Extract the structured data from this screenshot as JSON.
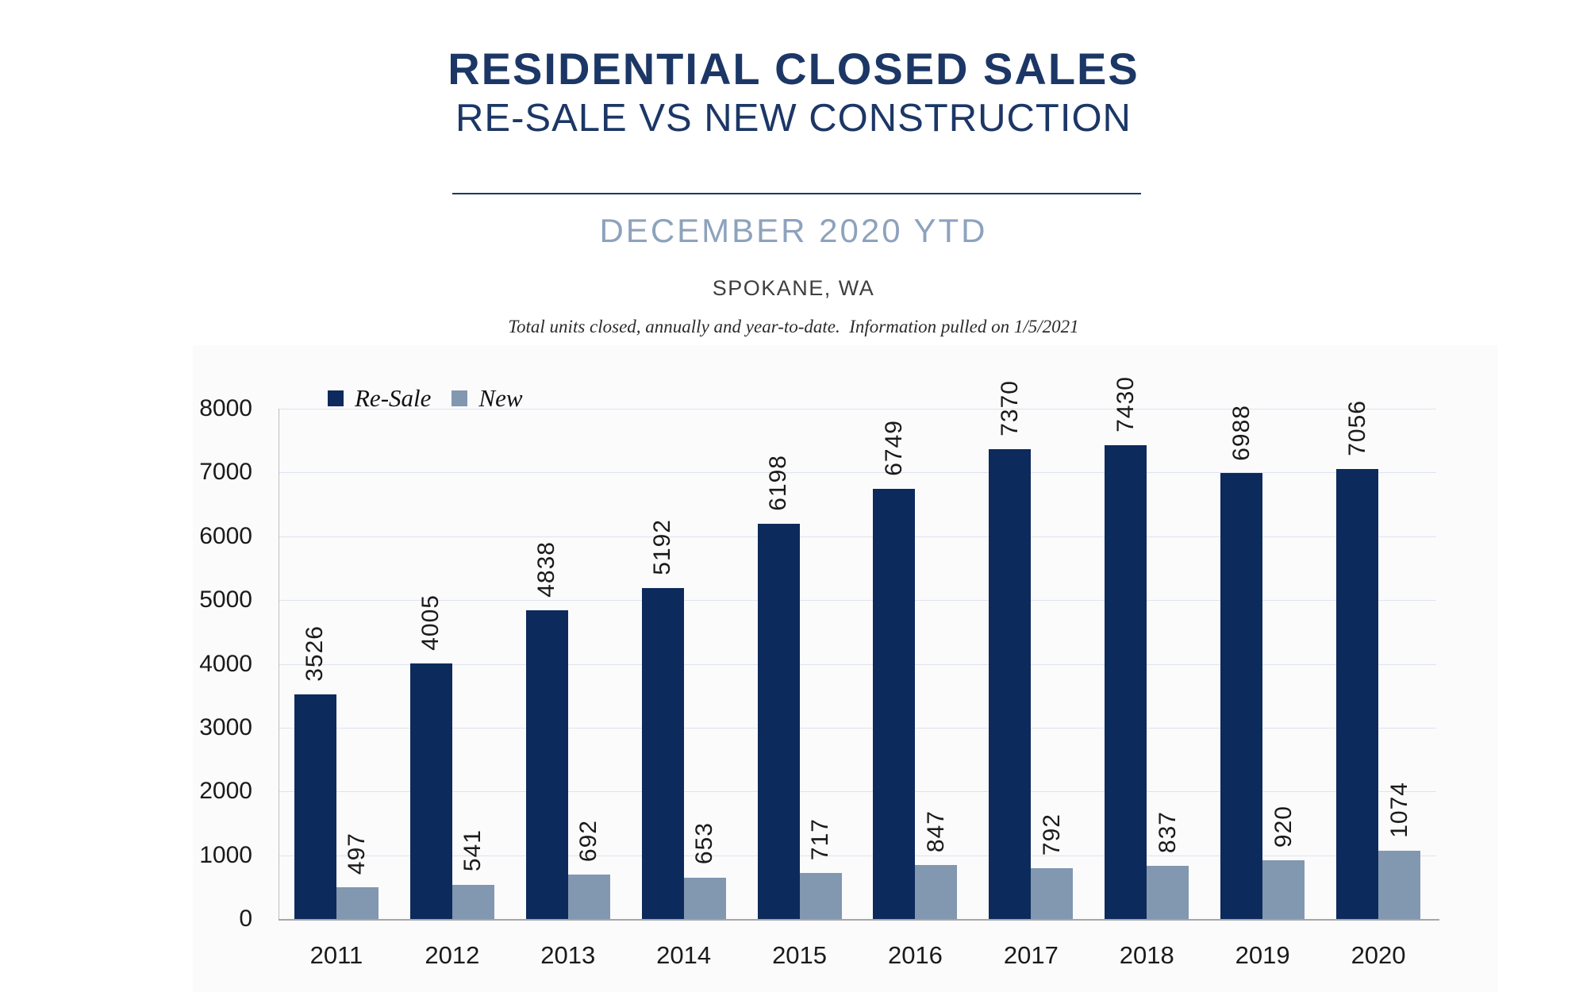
{
  "header": {
    "title": "RESIDENTIAL CLOSED SALES",
    "subtitle": "RE-SALE VS NEW CONSTRUCTION",
    "period": "DECEMBER 2020 YTD",
    "location": "SPOKANE, WA",
    "note": "Total units closed, annually and year-to-date.  Information pulled on 1/5/2021"
  },
  "colors": {
    "title_navy": "#1c3766",
    "period_blue": "#8da2bc",
    "resale_bar": "#0d2a5c",
    "new_bar": "#8297b0",
    "gridline": "#dde3f2",
    "axis_line": "#a6a6a6",
    "spine_line": "#bcbcbc",
    "label_text": "#1a1a1a"
  },
  "chart_data": {
    "type": "bar",
    "title": "Residential Closed Sales - Re-Sale vs New Construction",
    "subtitle": "December 2020 YTD, Spokane, WA",
    "categories": [
      "2011",
      "2012",
      "2013",
      "2014",
      "2015",
      "2016",
      "2017",
      "2018",
      "2019",
      "2020"
    ],
    "series": [
      {
        "name": "Re-Sale",
        "color": "#0d2a5c",
        "values": [
          3526,
          4005,
          4838,
          5192,
          6198,
          6749,
          7370,
          7430,
          6988,
          7056
        ]
      },
      {
        "name": "New",
        "color": "#8297b0",
        "values": [
          497,
          541,
          692,
          653,
          717,
          847,
          792,
          837,
          920,
          1074
        ]
      }
    ],
    "xlabel": "",
    "ylabel": "",
    "ylim": [
      0,
      8000
    ],
    "yticks": [
      0,
      1000,
      2000,
      3000,
      4000,
      5000,
      6000,
      7000,
      8000
    ],
    "grid": true,
    "legend_position": "top-left",
    "data_labels": "rotated-90"
  }
}
